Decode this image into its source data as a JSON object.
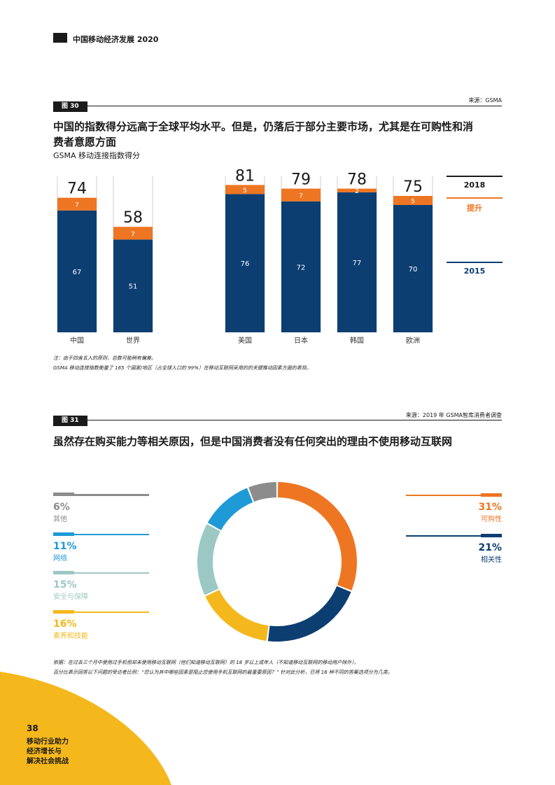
{
  "header": {
    "logo": "gsma-logo-icon",
    "title": "中国移动经济发展 2020"
  },
  "fig30": {
    "tag": "图 30",
    "source": "来源：GSMA",
    "headline_1": "中国的指数得分远高于全球平均水平。但是，仍落后于部分主要市场，尤其是在可购性和消",
    "headline_2": "费者意愿方面",
    "subtitle": "GSMA 移动连接指数得分",
    "note_1": "注：由于四舍五入的原则，总数可能稍有偏差。",
    "note_2": "GSMA 移动连接指数衡量了 165 个国家/地区（占全球人口的 99%）在移动互联网采用的的关键推动因素方面的表现。",
    "legend": {
      "y2018": "2018",
      "uplift": "提升",
      "y2015": "2015"
    }
  },
  "fig31": {
    "tag": "图 31",
    "source": "来源：2019 年 GSMA智库消费者调查",
    "headline": "虽然存在购买能力等相关原因，但是中国消费者没有任何突出的理由不使用移动互联网",
    "note_1": "依据：在过去三个月中使用过手机但却未使用移动互联网（他们知道移动互联网）的 18 岁以上成年人（不知道移动互联网的移动用户除外）。",
    "note_2": "百分比表示回答以下问题的受访者比例：“您认为其中哪些因素是阻止您使用手机互联网的最重要原因？” 针对此分析，已将 18 种不同的答案选项分为几类。",
    "left_items": [
      {
        "pct": "6%",
        "label": "其他"
      },
      {
        "pct": "11%",
        "label": "网络"
      },
      {
        "pct": "15%",
        "label": "安全与保障"
      },
      {
        "pct": "16%",
        "label": "素养和技能"
      }
    ],
    "right_items": [
      {
        "pct": "31%",
        "label": "可购性"
      },
      {
        "pct": "21%",
        "label": "相关性"
      }
    ]
  },
  "footer": {
    "page": "38",
    "line1": "移动行业助力",
    "line2": "经济增长与",
    "line3": "解决社会挑战"
  },
  "chart_data": [
    {
      "type": "bar",
      "title": "GSMA 移动连接指数得分",
      "categories": [
        "中国",
        "世界",
        "美国",
        "日本",
        "韩国",
        "欧洲"
      ],
      "series": [
        {
          "name": "2015",
          "values": [
            67,
            51,
            76,
            72,
            77,
            70
          ],
          "color": "#0c3e72"
        },
        {
          "name": "提升",
          "values": [
            7,
            7,
            5,
            7,
            2,
            5
          ],
          "color": "#ee7623"
        }
      ],
      "totals": [
        74,
        58,
        81,
        79,
        78,
        75
      ],
      "totals_label": "2018",
      "stacked": true,
      "ylim": [
        0,
        100
      ]
    },
    {
      "type": "pie",
      "donut": true,
      "labels": [
        "可购性",
        "相关性",
        "素养和技能",
        "安全与保障",
        "网络",
        "其他"
      ],
      "values": [
        31,
        21,
        16,
        15,
        11,
        6
      ],
      "colors": [
        "#ee7623",
        "#0c3e72",
        "#f5b81c",
        "#9cc8c4",
        "#1e9ad6",
        "#8c8c8c"
      ]
    }
  ]
}
